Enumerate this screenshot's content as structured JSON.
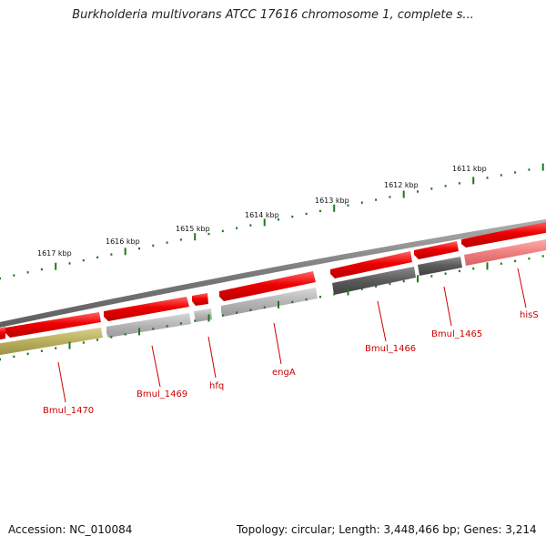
{
  "title": "Burkholderia multivorans ATCC 17616 chromosome 1, complete s...",
  "footer": {
    "accession": "Accession: NC_010084",
    "summary": "Topology: circular; Length: 3,448,466 bp; Genes: 3,214"
  },
  "scale": {
    "tick_color": "#1a7a1a",
    "labels": [
      "1617 kbp",
      "1616 kbp",
      "1615 kbp",
      "1614 kbp",
      "1613 kbp",
      "1612 kbp",
      "1611 kbp"
    ]
  },
  "colors": {
    "backbone": "#808080",
    "forward_gene": "#ee0000",
    "reverse_gray": "#a8a8a8",
    "reverse_dark": "#555555",
    "reverse_olive": "#b5ad5a",
    "reverse_pink": "#f07a7a",
    "label": "#cc0000"
  },
  "genes": [
    {
      "name": "Bmul_1470"
    },
    {
      "name": "Bmul_1469"
    },
    {
      "name": "hfq"
    },
    {
      "name": "engA"
    },
    {
      "name": "Bmul_1466"
    },
    {
      "name": "Bmul_1465"
    },
    {
      "name": "hisS"
    }
  ]
}
